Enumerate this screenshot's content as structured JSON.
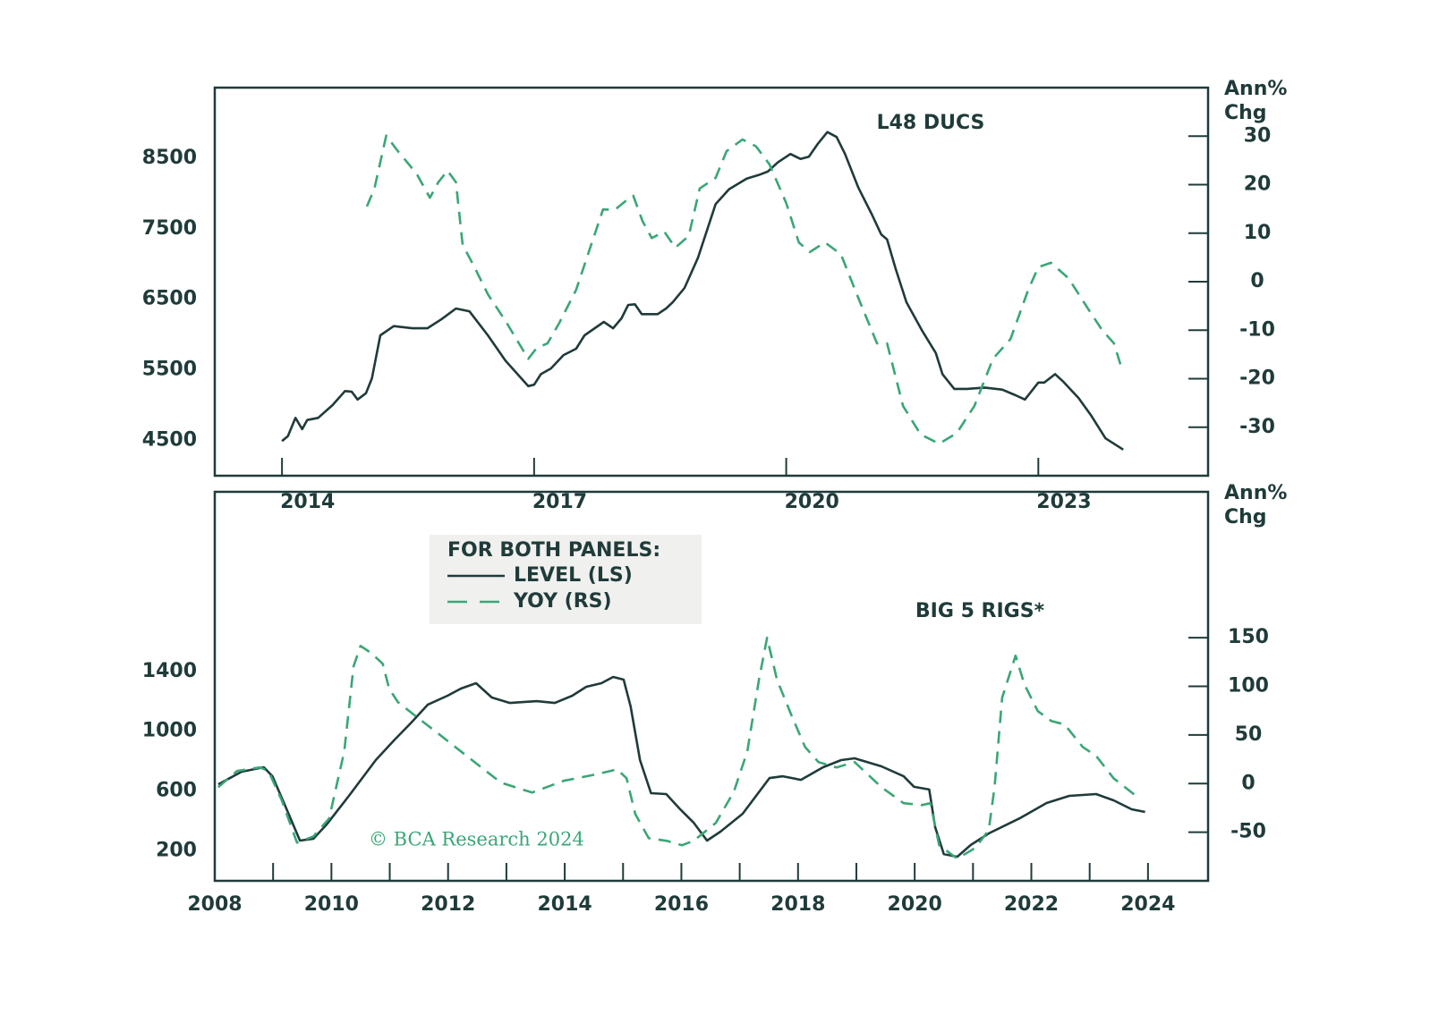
{
  "chart_data": [
    {
      "type": "line",
      "title": "L48 DUCS",
      "y2_label": [
        "Ann%",
        "Chg"
      ],
      "xlim": [
        2013.2,
        2025.02
      ],
      "xticks": [
        2014,
        2017,
        2020,
        2023
      ],
      "ylim": [
        4000,
        9500
      ],
      "yticks": [
        4500,
        5500,
        6500,
        7500,
        8500
      ],
      "y2lim": [
        -40,
        40
      ],
      "y2ticks": [
        -30,
        -20,
        -10,
        0,
        10,
        20,
        30
      ],
      "series": [
        {
          "name": "LEVEL (LS)",
          "color": "#1f3b3a",
          "dash": false,
          "x": [
            2014.0,
            2014.07,
            2014.16,
            2014.24,
            2014.3,
            2014.43,
            2014.6,
            2014.75,
            2014.83,
            2014.9,
            2015.0,
            2015.07,
            2015.17,
            2015.33,
            2015.55,
            2015.73,
            2015.9,
            2016.07,
            2016.23,
            2016.45,
            2016.66,
            2016.93,
            2017.0,
            2017.08,
            2017.2,
            2017.35,
            2017.5,
            2017.6,
            2017.83,
            2017.94,
            2018.04,
            2018.12,
            2018.2,
            2018.28,
            2018.47,
            2018.57,
            2018.65,
            2018.79,
            2018.95,
            2019.16,
            2019.32,
            2019.53,
            2019.67,
            2019.78,
            2019.9,
            2020.05,
            2020.17,
            2020.27,
            2020.38,
            2020.49,
            2020.6,
            2020.7,
            2020.86,
            2021.02,
            2021.13,
            2021.2,
            2021.3,
            2021.43,
            2021.62,
            2021.78,
            2021.86,
            2022.0,
            2022.15,
            2022.36,
            2022.57,
            2022.73,
            2022.84,
            2023.0,
            2023.07,
            2023.2,
            2023.3,
            2023.48,
            2023.63,
            2023.8,
            2024.01
          ],
          "values": [
            4490,
            4560,
            4820,
            4660,
            4790,
            4820,
            5000,
            5200,
            5190,
            5080,
            5170,
            5380,
            5990,
            6120,
            6090,
            6090,
            6220,
            6370,
            6330,
            5990,
            5630,
            5270,
            5290,
            5440,
            5520,
            5710,
            5800,
            5990,
            6180,
            6090,
            6230,
            6420,
            6430,
            6290,
            6290,
            6370,
            6460,
            6660,
            7090,
            7850,
            8060,
            8210,
            8260,
            8310,
            8440,
            8560,
            8490,
            8520,
            8710,
            8870,
            8800,
            8560,
            8080,
            7700,
            7420,
            7350,
            6940,
            6460,
            6050,
            5740,
            5440,
            5230,
            5230,
            5250,
            5220,
            5140,
            5080,
            5320,
            5320,
            5440,
            5330,
            5100,
            4850,
            4530,
            4370
          ]
        },
        {
          "name": "YOY (RS)",
          "color": "#3aa676",
          "dash": true,
          "axis": "y2",
          "x": [
            2015.01,
            2015.1,
            2015.24,
            2015.38,
            2015.6,
            2015.76,
            2015.86,
            2015.97,
            2016.07,
            2016.15,
            2016.29,
            2016.45,
            2016.66,
            2016.93,
            2017.03,
            2017.16,
            2017.3,
            2017.5,
            2017.66,
            2017.82,
            2017.96,
            2018.1,
            2018.18,
            2018.29,
            2018.4,
            2018.55,
            2018.68,
            2018.84,
            2018.97,
            2019.16,
            2019.29,
            2019.48,
            2019.64,
            2019.8,
            2020.0,
            2020.15,
            2020.28,
            2020.46,
            2020.65,
            2020.84,
            2021.08,
            2021.2,
            2021.39,
            2021.6,
            2021.82,
            2022.03,
            2022.24,
            2022.46,
            2022.67,
            2022.88,
            2023.0,
            2023.15,
            2023.36,
            2023.57,
            2023.76,
            2023.9,
            2024.0
          ],
          "values": [
            15.5,
            19.2,
            30.1,
            26.9,
            22.3,
            17.3,
            20.5,
            22.9,
            20.5,
            7.6,
            3.0,
            -2.6,
            -8.1,
            -15.9,
            -13.7,
            -12.7,
            -8.5,
            -1.7,
            6.6,
            14.9,
            14.8,
            16.8,
            17.7,
            12.5,
            9.0,
            10.3,
            7.0,
            9.4,
            19.2,
            21.4,
            26.9,
            29.3,
            27.9,
            24.2,
            16.2,
            8.1,
            6.1,
            8.1,
            5.7,
            -2.6,
            -12.7,
            -12.7,
            -25.6,
            -31.5,
            -33.4,
            -31.2,
            -25.6,
            -15.9,
            -11.8,
            -1.7,
            3.0,
            3.9,
            0.7,
            -5.0,
            -10.0,
            -12.7,
            -18.3
          ]
        }
      ]
    },
    {
      "type": "line",
      "title": "BIG 5 RIGS*",
      "y2_label": [
        "Ann%",
        "Chg"
      ],
      "legend_title": "FOR BOTH PANELS:",
      "watermark": "© BCA Research 2024",
      "xlim": [
        2008,
        2025.03
      ],
      "xticks": [
        2008,
        2010,
        2012,
        2014,
        2016,
        2018,
        2020,
        2022,
        2024
      ],
      "xminor": [
        2009,
        2011,
        2013,
        2015,
        2017,
        2019,
        2021,
        2023
      ],
      "ylim": [
        0,
        2600
      ],
      "yticks": [
        200,
        600,
        1000,
        1400
      ],
      "y2lim": [
        -100,
        300
      ],
      "y2ticks": [
        -50,
        0,
        50,
        100,
        150
      ],
      "series": [
        {
          "name": "LEVEL (LS)",
          "color": "#1f3b3a",
          "dash": false,
          "x": [
            2008.06,
            2008.46,
            2008.84,
            2008.99,
            2009.2,
            2009.46,
            2009.69,
            2009.92,
            2010.3,
            2010.76,
            2011.07,
            2011.37,
            2011.65,
            2011.99,
            2012.22,
            2012.48,
            2012.75,
            2013.06,
            2013.52,
            2013.83,
            2014.13,
            2014.37,
            2014.63,
            2014.83,
            2015.01,
            2015.13,
            2015.29,
            2015.48,
            2015.74,
            2015.98,
            2016.21,
            2016.44,
            2016.67,
            2017.05,
            2017.51,
            2017.74,
            2018.05,
            2018.43,
            2018.74,
            2018.97,
            2019.43,
            2019.81,
            2019.99,
            2020.25,
            2020.35,
            2020.5,
            2020.73,
            2020.96,
            2021.27,
            2021.8,
            2022.26,
            2022.65,
            2023.11,
            2023.41,
            2023.72,
            2023.95
          ],
          "values": [
            645,
            729,
            759,
            699,
            508,
            269,
            281,
            377,
            568,
            807,
            938,
            1058,
            1177,
            1237,
            1285,
            1321,
            1225,
            1189,
            1201,
            1189,
            1237,
            1297,
            1321,
            1363,
            1345,
            1166,
            807,
            586,
            580,
            478,
            389,
            269,
            329,
            448,
            687,
            699,
            675,
            759,
            807,
            819,
            765,
            699,
            628,
            610,
            359,
            179,
            161,
            239,
            317,
            418,
            520,
            568,
            580,
            538,
            478,
            460
          ]
        },
        {
          "name": "YOY (RS)",
          "color": "#3aa676",
          "dash": true,
          "axis": "y2",
          "x": [
            2008.06,
            2008.38,
            2008.77,
            2008.92,
            2009.15,
            2009.41,
            2009.69,
            2009.96,
            2010.22,
            2010.38,
            2010.5,
            2010.68,
            2010.88,
            2010.99,
            2011.14,
            2011.53,
            2011.83,
            2012.22,
            2012.57,
            2012.91,
            2013.44,
            2013.98,
            2014.52,
            2014.9,
            2015.06,
            2015.21,
            2015.44,
            2015.75,
            2016.01,
            2016.21,
            2016.59,
            2016.9,
            2017.13,
            2017.33,
            2017.47,
            2017.64,
            2017.89,
            2018.12,
            2018.35,
            2018.66,
            2018.97,
            2019.43,
            2019.81,
            2020.12,
            2020.27,
            2020.42,
            2020.73,
            2021.04,
            2021.27,
            2021.37,
            2021.5,
            2021.73,
            2021.88,
            2022.11,
            2022.34,
            2022.57,
            2022.88,
            2023.11,
            2023.41,
            2023.8
          ],
          "values": [
            -3.7,
            12.9,
            16.6,
            12.9,
            -17.5,
            -60.7,
            -54.3,
            -35.9,
            33.1,
            120.5,
            141.6,
            134.3,
            123.2,
            97.5,
            83.7,
            65.3,
            51.5,
            33.1,
            16.6,
            0.9,
            -9.2,
            2.8,
            9.2,
            14.7,
            5.5,
            -31.3,
            -56.1,
            -58.9,
            -63.4,
            -58.9,
            -40.5,
            -8.3,
            33.1,
            106.7,
            149.9,
            106.7,
            69.9,
            37.7,
            22.1,
            16.6,
            22.1,
            -3.7,
            -20.2,
            -22.1,
            -20.2,
            -63.4,
            -77.2,
            -66.2,
            -47.8,
            -3.7,
            88.3,
            131.5,
            102.1,
            74.5,
            64.4,
            60.7,
            37.7,
            28.5,
            5.5,
            -12.9
          ]
        }
      ]
    }
  ]
}
